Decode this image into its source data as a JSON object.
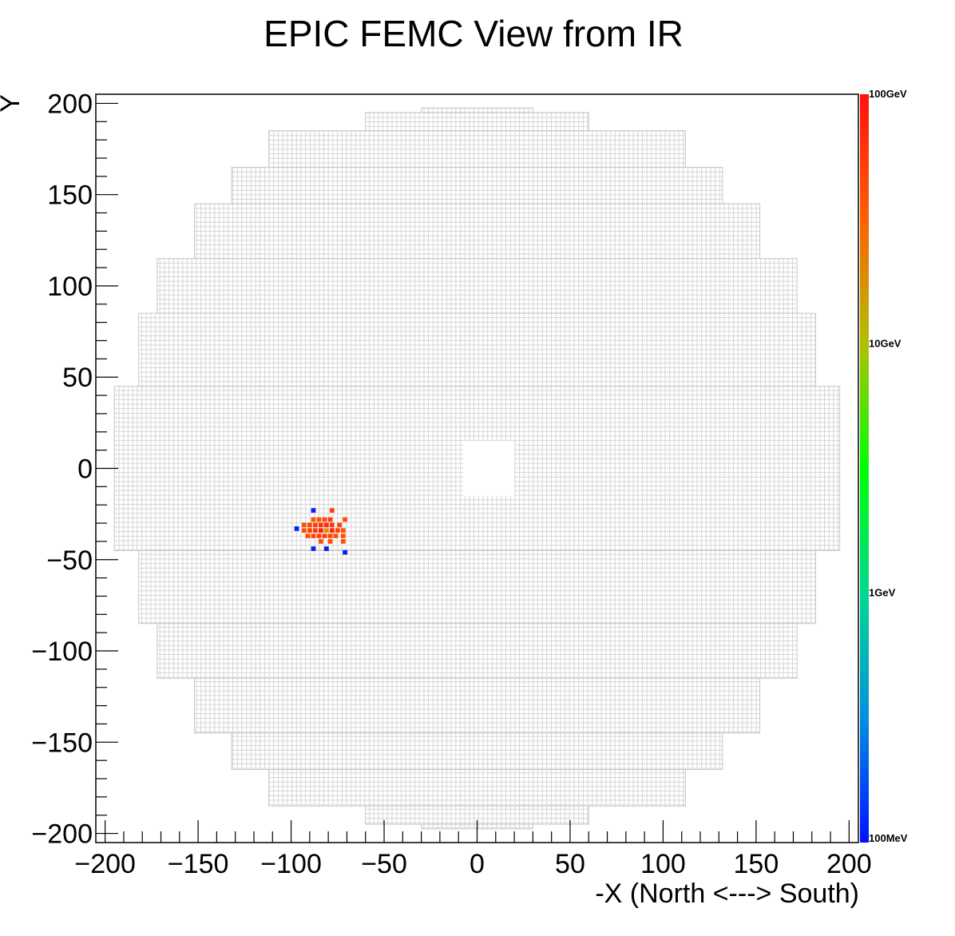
{
  "chart_data": {
    "type": "heatmap",
    "title": "EPIC FEMC View from IR",
    "xlabel": "-X (North <---> South)",
    "ylabel": "Y",
    "xlim": [
      -205,
      205
    ],
    "ylim": [
      -205,
      205
    ],
    "x_ticks": [
      -200,
      -150,
      -100,
      -50,
      0,
      50,
      100,
      150,
      200
    ],
    "y_ticks": [
      -200,
      -150,
      -100,
      -50,
      0,
      50,
      100,
      150,
      200
    ],
    "x_tick_labels": [
      "−200",
      "−150",
      "−100",
      "−50",
      "0",
      "50",
      "100",
      "150",
      "200"
    ],
    "y_tick_labels": [
      "−200",
      "−150",
      "−100",
      "−50",
      "0",
      "50",
      "100",
      "150",
      "200"
    ],
    "cell_size": 2.5,
    "detector_outline": [
      {
        "x_range": [
          -30,
          30
        ],
        "y_range": [
          195,
          197.5
        ]
      },
      {
        "x_range": [
          -60,
          60
        ],
        "y_range": [
          185,
          195
        ]
      },
      {
        "x_range": [
          -112,
          112
        ],
        "y_range": [
          165,
          185
        ]
      },
      {
        "x_range": [
          -132,
          132
        ],
        "y_range": [
          145,
          165
        ]
      },
      {
        "x_range": [
          -152,
          152
        ],
        "y_range": [
          115,
          145
        ]
      },
      {
        "x_range": [
          -172,
          172
        ],
        "y_range": [
          85,
          115
        ]
      },
      {
        "x_range": [
          -182,
          182
        ],
        "y_range": [
          45,
          85
        ]
      },
      {
        "x_range": [
          -195,
          195
        ],
        "y_range": [
          -45,
          45
        ]
      },
      {
        "x_range": [
          -182,
          182
        ],
        "y_range": [
          -85,
          -45
        ]
      },
      {
        "x_range": [
          -172,
          172
        ],
        "y_range": [
          -115,
          -85
        ]
      },
      {
        "x_range": [
          -152,
          152
        ],
        "y_range": [
          -145,
          -115
        ]
      },
      {
        "x_range": [
          -132,
          132
        ],
        "y_range": [
          -165,
          -145
        ]
      },
      {
        "x_range": [
          -112,
          112
        ],
        "y_range": [
          -185,
          -165
        ]
      },
      {
        "x_range": [
          -60,
          60
        ],
        "y_range": [
          -195,
          -185
        ]
      },
      {
        "x_range": [
          -30,
          30
        ],
        "y_range": [
          -197.5,
          -195
        ]
      }
    ],
    "beam_hole": {
      "x_range": [
        -7.5,
        20
      ],
      "y_range": [
        -15,
        15
      ]
    },
    "colorbar": {
      "scale": "log",
      "range_gev": [
        0.1,
        100
      ],
      "ticks": [
        {
          "value": 100,
          "label": "100GeV"
        },
        {
          "value": 10,
          "label": "10GeV"
        },
        {
          "value": 1,
          "label": "1GeV"
        },
        {
          "value": 0.1,
          "label": "100MeV"
        }
      ],
      "colors": [
        "#0010ff",
        "#0090e0",
        "#00d890",
        "#00ff00",
        "#b0c000",
        "#ff6000",
        "#ff1010"
      ]
    },
    "hits": [
      {
        "x": -88,
        "y": -23,
        "e_gev": 0.12
      },
      {
        "x": -97,
        "y": -33,
        "e_gev": 0.12
      },
      {
        "x": -78,
        "y": -23,
        "e_gev": 50
      },
      {
        "x": -85,
        "y": -28,
        "e_gev": 40
      },
      {
        "x": -82,
        "y": -28,
        "e_gev": 45
      },
      {
        "x": -79,
        "y": -28,
        "e_gev": 50
      },
      {
        "x": -88,
        "y": -28,
        "e_gev": 35
      },
      {
        "x": -71,
        "y": -28,
        "e_gev": 40
      },
      {
        "x": -93,
        "y": -31,
        "e_gev": 40
      },
      {
        "x": -90,
        "y": -31,
        "e_gev": 45
      },
      {
        "x": -87,
        "y": -31,
        "e_gev": 50
      },
      {
        "x": -84,
        "y": -31,
        "e_gev": 60
      },
      {
        "x": -81,
        "y": -31,
        "e_gev": 70
      },
      {
        "x": -78,
        "y": -31,
        "e_gev": 55
      },
      {
        "x": -74,
        "y": -31,
        "e_gev": 45
      },
      {
        "x": -93,
        "y": -34,
        "e_gev": 40
      },
      {
        "x": -90,
        "y": -34,
        "e_gev": 50
      },
      {
        "x": -87,
        "y": -34,
        "e_gev": 55
      },
      {
        "x": -84,
        "y": -34,
        "e_gev": 80
      },
      {
        "x": -81,
        "y": -34,
        "e_gev": 18
      },
      {
        "x": -78,
        "y": -34,
        "e_gev": 70
      },
      {
        "x": -75,
        "y": -34,
        "e_gev": 50
      },
      {
        "x": -72,
        "y": -34,
        "e_gev": 40
      },
      {
        "x": -91,
        "y": -37,
        "e_gev": 40
      },
      {
        "x": -88,
        "y": -37,
        "e_gev": 45
      },
      {
        "x": -85,
        "y": -37,
        "e_gev": 50
      },
      {
        "x": -82,
        "y": -37,
        "e_gev": 50
      },
      {
        "x": -79,
        "y": -37,
        "e_gev": 45
      },
      {
        "x": -76,
        "y": -37,
        "e_gev": 40
      },
      {
        "x": -72,
        "y": -37,
        "e_gev": 40
      },
      {
        "x": -84,
        "y": -40,
        "e_gev": 40
      },
      {
        "x": -79,
        "y": -40,
        "e_gev": 40
      },
      {
        "x": -72,
        "y": -40,
        "e_gev": 40
      },
      {
        "x": -88,
        "y": -44,
        "e_gev": 0.12
      },
      {
        "x": -81,
        "y": -44,
        "e_gev": 0.12
      },
      {
        "x": -71,
        "y": -46,
        "e_gev": 0.12
      }
    ]
  }
}
